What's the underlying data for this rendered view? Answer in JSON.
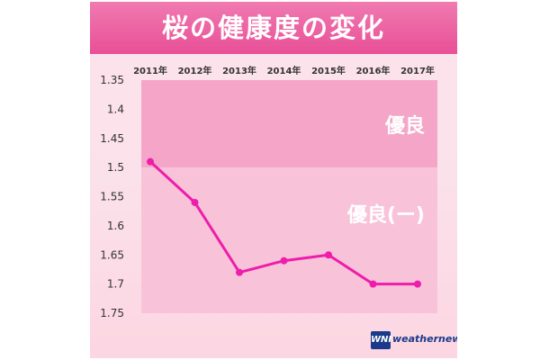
{
  "chart_data": {
    "type": "line",
    "title": "桜の健康度の変化",
    "xlabel": "",
    "ylabel": "",
    "categories": [
      "2011年",
      "2012年",
      "2013年",
      "2014年",
      "2015年",
      "2016年",
      "2017年"
    ],
    "values": [
      1.49,
      1.56,
      1.68,
      1.66,
      1.65,
      1.7,
      1.7
    ],
    "ylim": [
      1.35,
      1.75
    ],
    "y_inverted": true,
    "y_ticks": [
      "1.35",
      "1.4",
      "1.45",
      "1.5",
      "1.55",
      "1.6",
      "1.65",
      "1.7",
      "1.75"
    ],
    "x_axis_position": "top",
    "zones": [
      {
        "label": "優良",
        "from": 1.35,
        "to": 1.5
      },
      {
        "label": "優良(ー)",
        "from": 1.5,
        "to": 1.75
      }
    ],
    "line_color": "#ee1dab",
    "grid": false
  },
  "logo": {
    "badge": "WNI",
    "text": "weathernews"
  }
}
